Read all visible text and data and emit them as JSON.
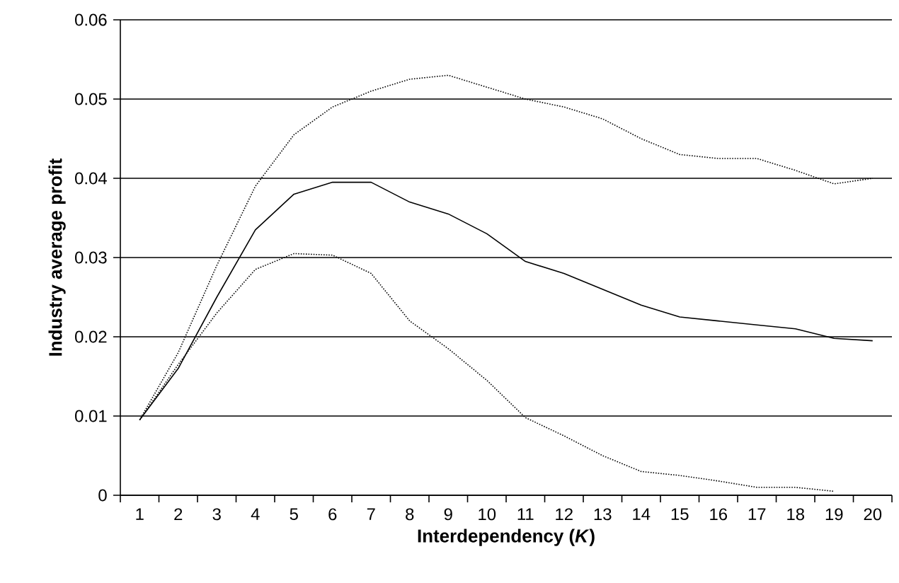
{
  "chart_data": {
    "type": "line",
    "xlabel": "Interdependency (*K*)",
    "ylabel": "Industry average profit",
    "categories": [
      "1",
      "2",
      "3",
      "4",
      "5",
      "6",
      "7",
      "8",
      "9",
      "10",
      "11",
      "12",
      "13",
      "14",
      "15",
      "16",
      "17",
      "18",
      "19",
      "20"
    ],
    "series": [
      {
        "color": "#000000",
        "line_style": "dotted",
        "values": [
          0.0095,
          0.018,
          0.029,
          0.039,
          0.0455,
          0.049,
          0.051,
          0.0525,
          0.053,
          0.0515,
          0.05,
          0.049,
          0.0475,
          0.045,
          0.043,
          0.0425,
          0.0425,
          0.041,
          0.0393,
          0.04
        ]
      },
      {
        "color": "#000000",
        "line_style": "solid",
        "values": [
          0.0095,
          0.016,
          0.025,
          0.0335,
          0.038,
          0.0395,
          0.0395,
          0.037,
          0.0355,
          0.033,
          0.0295,
          0.028,
          0.026,
          0.024,
          0.0225,
          0.022,
          0.0215,
          0.021,
          0.0198,
          0.0195
        ]
      },
      {
        "color": "#000000",
        "line_style": "dotted",
        "values": [
          0.0095,
          0.0165,
          0.023,
          0.0285,
          0.0305,
          0.0303,
          0.028,
          0.022,
          0.0185,
          0.0145,
          0.0098,
          0.0075,
          0.005,
          0.003,
          0.0025,
          0.0018,
          0.001,
          0.001,
          0.0005,
          null
        ]
      }
    ],
    "ylim": [
      0,
      0.06
    ],
    "yticks": [
      0,
      0.01,
      0.02,
      0.03,
      0.04,
      0.05,
      0.06
    ],
    "grid": "y",
    "legend": false,
    "marker": "none"
  }
}
